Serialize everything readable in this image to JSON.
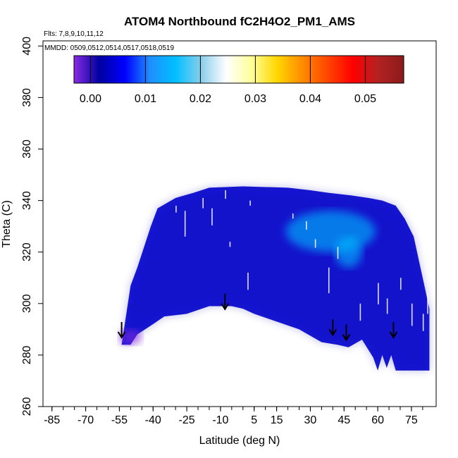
{
  "chart_data": {
    "type": "heatmap",
    "title": "ATOM4 Northbound fC2H4O2_PM1_AMS",
    "flights_note": "Flts: 7,8,9,10,11,12",
    "dates_note": "MMDD: 0509,0512,0514,0517,0518,0519",
    "xlabel": "Latitude (deg N)",
    "ylabel": "Theta (C)",
    "xlim": [
      -89,
      86
    ],
    "ylim": [
      260,
      402
    ],
    "x_ticks": [
      -85,
      -70,
      -55,
      -40,
      -25,
      -10,
      5,
      15,
      30,
      45,
      60,
      75
    ],
    "x_tick_labels": [
      "-85",
      "-70",
      "-55",
      "-40",
      "-25",
      "-10",
      "5",
      "15",
      "30",
      "45",
      "60",
      "75"
    ],
    "y_ticks": [
      260,
      280,
      300,
      320,
      340,
      360,
      380,
      400
    ],
    "y_tick_labels": [
      "260",
      "280",
      "300",
      "320",
      "340",
      "360",
      "380",
      "400"
    ],
    "colorbar": {
      "min": -0.003,
      "max": 0.057,
      "ticks": [
        0.0,
        0.01,
        0.02,
        0.03,
        0.04,
        0.05
      ],
      "tick_labels": [
        "0.00",
        "0.01",
        "0.02",
        "0.03",
        "0.04",
        "0.05"
      ],
      "colors": [
        "#8a2be2",
        "#0000a0",
        "#0000ff",
        "#1e90ff",
        "#00bfff",
        "#87ceeb",
        "#ffffff",
        "#ffff99",
        "#ffd700",
        "#ff8c00",
        "#ff4500",
        "#ff0000",
        "#b22222",
        "#8b1a1a"
      ]
    },
    "field": {
      "base_color": "#1a1ad6",
      "top_boundary": [
        [
          -50,
          307
        ],
        [
          -47,
          314
        ],
        [
          -44,
          322
        ],
        [
          -41,
          330
        ],
        [
          -38,
          337
        ],
        [
          -30,
          341
        ],
        [
          -22,
          343
        ],
        [
          -15,
          345
        ],
        [
          0,
          345.5
        ],
        [
          20,
          345
        ],
        [
          30,
          344
        ],
        [
          38,
          343
        ],
        [
          48,
          342
        ],
        [
          56,
          341
        ],
        [
          62,
          340
        ],
        [
          68,
          338
        ],
        [
          72,
          333
        ],
        [
          76,
          326
        ],
        [
          80,
          310
        ],
        [
          82,
          302
        ],
        [
          83,
          298
        ]
      ],
      "bottom_boundary": [
        [
          -54,
          284
        ],
        [
          -50,
          284
        ],
        [
          -47,
          288
        ],
        [
          -40,
          292
        ],
        [
          -35,
          295
        ],
        [
          -25,
          296
        ],
        [
          -15,
          299
        ],
        [
          -10,
          299
        ],
        [
          -5,
          299
        ],
        [
          0,
          298
        ],
        [
          5,
          296
        ],
        [
          15,
          293
        ],
        [
          25,
          290
        ],
        [
          35,
          285
        ],
        [
          42,
          284
        ],
        [
          47,
          283
        ],
        [
          53,
          286
        ],
        [
          58,
          279
        ],
        [
          60,
          274
        ],
        [
          62,
          280
        ],
        [
          64,
          275
        ],
        [
          66,
          280
        ],
        [
          68,
          274
        ],
        [
          83,
          274
        ]
      ],
      "highlights": [
        {
          "lat": 39,
          "theta": 328,
          "rx": 20,
          "ry": 8,
          "value": 0.017
        },
        {
          "lat": 47,
          "theta": 320,
          "rx": 6,
          "ry": 6,
          "value": 0.015
        },
        {
          "lat": -50,
          "theta": 287,
          "rx": 5,
          "ry": 3,
          "value": -0.002
        }
      ]
    },
    "flight_markers_lat": [
      -54,
      -8,
      40,
      46,
      67
    ],
    "flight_markers_theta": [
      289,
      300,
      290,
      288,
      289
    ]
  }
}
